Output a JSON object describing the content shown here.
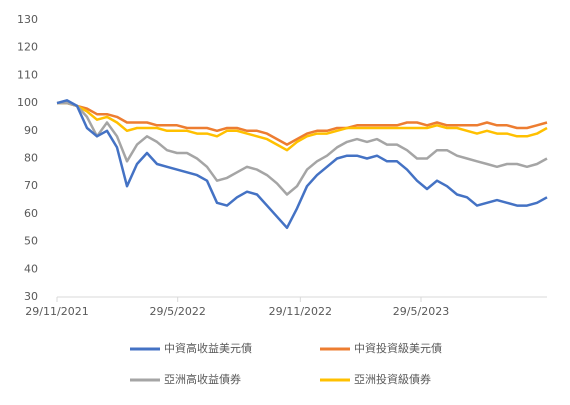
{
  "chart_data": {
    "type": "line",
    "x": [
      "2021-11-29",
      "2021-12-14",
      "2021-12-29",
      "2022-01-13",
      "2022-01-28",
      "2022-02-12",
      "2022-02-27",
      "2022-03-14",
      "2022-03-29",
      "2022-04-13",
      "2022-04-28",
      "2022-05-13",
      "2022-05-28",
      "2022-06-12",
      "2022-06-27",
      "2022-07-12",
      "2022-07-27",
      "2022-08-11",
      "2022-08-26",
      "2022-09-10",
      "2022-09-25",
      "2022-10-10",
      "2022-10-25",
      "2022-11-09",
      "2022-11-24",
      "2022-12-09",
      "2022-12-24",
      "2023-01-08",
      "2023-01-23",
      "2023-02-07",
      "2023-02-22",
      "2023-03-09",
      "2023-03-24",
      "2023-04-08",
      "2023-04-23",
      "2023-05-08",
      "2023-05-23",
      "2023-06-07",
      "2023-06-22",
      "2023-07-07",
      "2023-07-22",
      "2023-08-06",
      "2023-08-21",
      "2023-09-05",
      "2023-09-20",
      "2023-10-05",
      "2023-10-20",
      "2023-11-04",
      "2023-11-19",
      "2023-12-04"
    ],
    "series": [
      {
        "name": "中資高收益美元債",
        "color": "#4472c4",
        "values": [
          100,
          101,
          99,
          91,
          88,
          90,
          84,
          70,
          78,
          82,
          78,
          77,
          76,
          75,
          74,
          72,
          64,
          63,
          66,
          68,
          67,
          63,
          59,
          55,
          62,
          70,
          74,
          77,
          80,
          81,
          81,
          80,
          81,
          79,
          79,
          76,
          72,
          69,
          72,
          70,
          67,
          66,
          63,
          64,
          65,
          64,
          63,
          63,
          64,
          66
        ]
      },
      {
        "name": "中資投資級美元債",
        "color": "#ed7d31",
        "values": [
          100,
          100,
          99,
          98,
          96,
          96,
          95,
          93,
          93,
          93,
          92,
          92,
          92,
          91,
          91,
          91,
          90,
          91,
          91,
          90,
          90,
          89,
          87,
          85,
          87,
          89,
          90,
          90,
          91,
          91,
          92,
          92,
          92,
          92,
          92,
          93,
          93,
          92,
          93,
          92,
          92,
          92,
          92,
          93,
          92,
          92,
          91,
          91,
          92,
          93
        ]
      },
      {
        "name": "亞洲高收益債券",
        "color": "#a5a5a5",
        "values": [
          100,
          100,
          99,
          95,
          88,
          93,
          88,
          79,
          85,
          88,
          86,
          83,
          82,
          82,
          80,
          77,
          72,
          73,
          75,
          77,
          76,
          74,
          71,
          67,
          70,
          76,
          79,
          81,
          84,
          86,
          87,
          86,
          87,
          85,
          85,
          83,
          80,
          80,
          83,
          83,
          81,
          80,
          79,
          78,
          77,
          78,
          78,
          77,
          78,
          80
        ]
      },
      {
        "name": "亞洲投資級債券",
        "color": "#ffc000",
        "values": [
          100,
          100,
          99,
          97,
          94,
          95,
          93,
          90,
          91,
          91,
          91,
          90,
          90,
          90,
          89,
          89,
          88,
          90,
          90,
          89,
          88,
          87,
          85,
          83,
          86,
          88,
          89,
          89,
          90,
          91,
          91,
          91,
          91,
          91,
          91,
          91,
          91,
          91,
          92,
          91,
          91,
          90,
          89,
          90,
          89,
          89,
          88,
          88,
          89,
          91
        ]
      }
    ],
    "xlim": [
      "2021-11-29",
      "2023-12-04"
    ],
    "xticks": [
      {
        "value": "2021-11-29",
        "label": "29/11/2021"
      },
      {
        "value": "2022-05-29",
        "label": "29/5/2022"
      },
      {
        "value": "2022-11-29",
        "label": "29/11/2022"
      },
      {
        "value": "2023-05-29",
        "label": "29/5/2023"
      }
    ],
    "ylim": [
      30,
      130
    ],
    "yticks": [
      30,
      40,
      50,
      60,
      70,
      80,
      90,
      100,
      110,
      120,
      130
    ]
  }
}
